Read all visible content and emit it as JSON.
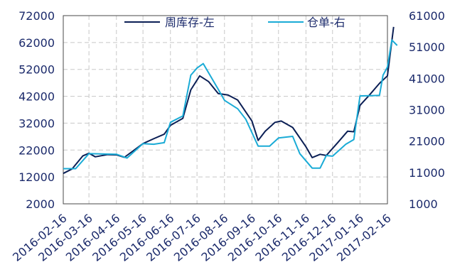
{
  "chart_data": {
    "type": "line",
    "title": "",
    "xlabel": "",
    "ylabel": "",
    "y2label": "",
    "grid": true,
    "legend_position": "top",
    "x_ticks": [
      "2016-02-16",
      "2016-03-16",
      "2016-04-16",
      "2016-05-16",
      "2016-06-16",
      "2016-07-16",
      "2016-08-16",
      "2016-09-16",
      "2016-10-16",
      "2016-11-16",
      "2016-12-16",
      "2017-01-16",
      "2017-02-16"
    ],
    "y_left": {
      "ticks": [
        "72000",
        "62000",
        "52000",
        "42000",
        "32000",
        "22000",
        "12000",
        "2000"
      ],
      "lim": [
        2000,
        72000
      ]
    },
    "y_right": {
      "ticks": [
        "61000",
        "51000",
        "41000",
        "31000",
        "21000",
        "11000",
        "1000"
      ],
      "lim": [
        1000,
        61000
      ]
    },
    "series": [
      {
        "name": "周库存-左",
        "axis": "left",
        "color": "#0b1f55",
        "points": [
          [
            "2016-02-16",
            13300
          ],
          [
            "2016-02-26",
            15000
          ],
          [
            "2016-03-09",
            19800
          ],
          [
            "2016-03-16",
            20800
          ],
          [
            "2016-03-23",
            19500
          ],
          [
            "2016-04-06",
            20300
          ],
          [
            "2016-04-16",
            20200
          ],
          [
            "2016-04-25",
            19300
          ],
          [
            "2016-05-16",
            24400
          ],
          [
            "2016-05-28",
            26200
          ],
          [
            "2016-06-09",
            27900
          ],
          [
            "2016-06-16",
            31200
          ],
          [
            "2016-06-30",
            33800
          ],
          [
            "2016-07-09",
            44400
          ],
          [
            "2016-07-19",
            49600
          ],
          [
            "2016-07-29",
            47500
          ],
          [
            "2016-08-09",
            43000
          ],
          [
            "2016-08-20",
            42500
          ],
          [
            "2016-08-31",
            40600
          ],
          [
            "2016-09-16",
            32800
          ],
          [
            "2016-09-23",
            25600
          ],
          [
            "2016-10-01",
            29000
          ],
          [
            "2016-10-12",
            32300
          ],
          [
            "2016-10-19",
            32800
          ],
          [
            "2016-11-01",
            30400
          ],
          [
            "2016-11-16",
            23200
          ],
          [
            "2016-11-23",
            19200
          ],
          [
            "2016-12-02",
            20400
          ],
          [
            "2016-12-09",
            20000
          ],
          [
            "2016-12-22",
            24800
          ],
          [
            "2017-01-02",
            29000
          ],
          [
            "2017-01-09",
            28800
          ],
          [
            "2017-01-16",
            38600
          ],
          [
            "2017-01-27",
            42600
          ],
          [
            "2017-02-07",
            46800
          ],
          [
            "2017-02-16",
            49600
          ],
          [
            "2017-02-23",
            67800
          ]
        ]
      },
      {
        "name": "仓单-右",
        "axis": "right",
        "color": "#1aabd6",
        "points": [
          [
            "2016-02-16",
            12200
          ],
          [
            "2016-03-01",
            12200
          ],
          [
            "2016-03-16",
            17000
          ],
          [
            "2016-04-16",
            16800
          ],
          [
            "2016-04-28",
            15600
          ],
          [
            "2016-05-16",
            20200
          ],
          [
            "2016-05-28",
            20000
          ],
          [
            "2016-06-09",
            20500
          ],
          [
            "2016-06-16",
            27000
          ],
          [
            "2016-06-30",
            29000
          ],
          [
            "2016-07-09",
            42000
          ],
          [
            "2016-07-16",
            44300
          ],
          [
            "2016-07-23",
            45700
          ],
          [
            "2016-08-09",
            37500
          ],
          [
            "2016-08-16",
            34000
          ],
          [
            "2016-08-31",
            31300
          ],
          [
            "2016-09-09",
            28000
          ],
          [
            "2016-09-23",
            19400
          ],
          [
            "2016-10-06",
            19400
          ],
          [
            "2016-10-16",
            22000
          ],
          [
            "2016-11-01",
            22500
          ],
          [
            "2016-11-09",
            17000
          ],
          [
            "2016-11-23",
            12400
          ],
          [
            "2016-12-02",
            12400
          ],
          [
            "2016-12-09",
            16400
          ],
          [
            "2016-12-16",
            16200
          ],
          [
            "2016-12-31",
            20000
          ],
          [
            "2017-01-09",
            21500
          ],
          [
            "2017-01-16",
            35400
          ],
          [
            "2017-01-31",
            35500
          ],
          [
            "2017-02-07",
            35600
          ],
          [
            "2017-02-11",
            42000
          ],
          [
            "2017-02-16",
            44600
          ],
          [
            "2017-02-21",
            53200
          ],
          [
            "2017-02-27",
            51500
          ]
        ]
      }
    ]
  }
}
